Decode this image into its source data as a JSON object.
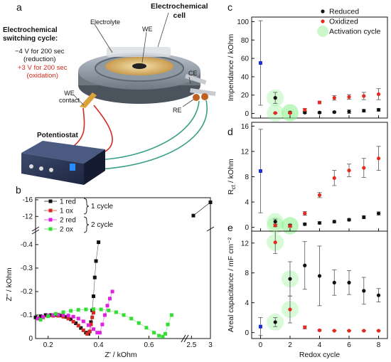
{
  "panel_letters": [
    "a",
    "b",
    "c",
    "d",
    "e"
  ],
  "schematic": {
    "cell_title_1": "Electrochemical",
    "cell_title_2": "cell",
    "cycle_title_1": "Electrochemical",
    "cycle_title_2": "switching cycle:",
    "reduction_1": "−4 V for 200 sec",
    "reduction_2": "(reduction)",
    "oxidation_1": "+3 V for 200 sec",
    "oxidation_2": "(oxidation)",
    "electrolyte": "Electrolyte",
    "we": "WE",
    "ce": "CE",
    "re": "RE",
    "we_contact_1": "WE",
    "we_contact_2": "contact",
    "potentiostat": "Potentiostat",
    "colors": {
      "reduction_text": "#111111",
      "oxidation_text": "#d42a20",
      "red_wire": "#d42a20",
      "green_wire": "#3aa08a",
      "black_wire": "#222222"
    }
  },
  "chart_data": [
    {
      "id": "b",
      "type": "line",
      "xlabel": "Z' / kOhm",
      "ylabel": "Z'' / kOhm",
      "x_ticks_left": [
        "0.2",
        "0.4",
        "0.6"
      ],
      "x_ticks_right": [
        "2.5",
        "3"
      ],
      "y_ticks_lower": [
        "0",
        "-0.1",
        "-0.2",
        "-0.3",
        "-0.4"
      ],
      "y_ticks_upper": [
        "-12",
        "-16"
      ],
      "xlim_left": [
        0.15,
        0.72
      ],
      "xlim_right": [
        2.4,
        3.0
      ],
      "ylim_lower": [
        0,
        -0.43
      ],
      "ylim_upper": [
        -10,
        -16.5
      ],
      "legend": [
        "1 red",
        "1 ox",
        "2 red",
        "2 ox"
      ],
      "legend_groups": [
        "1 cycle",
        "2 cycle"
      ],
      "series": [
        {
          "name": "1 red",
          "color": "#111111",
          "x": [
            0.15,
            0.17,
            0.19,
            0.21,
            0.23,
            0.25,
            0.27,
            0.29,
            0.31,
            0.33,
            0.35,
            0.36,
            0.365,
            0.37,
            0.375,
            0.38,
            0.385,
            0.39,
            0.4
          ],
          "y": [
            -0.09,
            -0.095,
            -0.1,
            -0.1,
            -0.1,
            -0.098,
            -0.092,
            -0.082,
            -0.065,
            -0.045,
            -0.025,
            -0.02,
            -0.03,
            -0.07,
            -0.12,
            -0.18,
            -0.26,
            -0.33,
            -0.41
          ],
          "x_upper": [
            2.55,
            3.0
          ],
          "y_upper": [
            -12.2,
            -15.4
          ]
        },
        {
          "name": "1 ox",
          "color": "#d42a20",
          "x": [
            0.16,
            0.18,
            0.2,
            0.22,
            0.24,
            0.26,
            0.28,
            0.3,
            0.32,
            0.34,
            0.355,
            0.365,
            0.37,
            0.375,
            0.38
          ],
          "y": [
            -0.085,
            -0.09,
            -0.095,
            -0.097,
            -0.097,
            -0.093,
            -0.085,
            -0.072,
            -0.055,
            -0.035,
            -0.02,
            -0.03,
            -0.06,
            -0.09,
            -0.11
          ]
        },
        {
          "name": "2 red",
          "color": "#e020e0",
          "x": [
            0.16,
            0.18,
            0.2,
            0.22,
            0.24,
            0.26,
            0.28,
            0.3,
            0.32,
            0.34,
            0.36,
            0.38,
            0.395,
            0.405,
            0.415,
            0.425,
            0.435,
            0.445,
            0.455
          ],
          "y": [
            -0.085,
            -0.092,
            -0.098,
            -0.1,
            -0.102,
            -0.1,
            -0.098,
            -0.093,
            -0.085,
            -0.073,
            -0.057,
            -0.04,
            -0.025,
            -0.025,
            -0.06,
            -0.1,
            -0.14,
            -0.17,
            -0.2
          ]
        },
        {
          "name": "2 ox",
          "color": "#33dd33",
          "x": [
            0.17,
            0.2,
            0.23,
            0.26,
            0.29,
            0.32,
            0.35,
            0.38,
            0.41,
            0.44,
            0.47,
            0.5,
            0.53,
            0.56,
            0.59,
            0.62,
            0.64,
            0.655,
            0.665,
            0.675,
            0.69
          ],
          "y": [
            -0.08,
            -0.095,
            -0.105,
            -0.112,
            -0.118,
            -0.122,
            -0.124,
            -0.125,
            -0.124,
            -0.12,
            -0.112,
            -0.1,
            -0.085,
            -0.066,
            -0.046,
            -0.025,
            -0.012,
            -0.008,
            -0.02,
            -0.06,
            -0.1
          ]
        }
      ]
    },
    {
      "id": "c",
      "type": "scatter",
      "xlabel": "",
      "ylabel": "Impendance / kOhm",
      "ylim": [
        -5,
        105
      ],
      "y_ticks": [
        "0",
        "20",
        "40",
        "60",
        "80",
        "100"
      ],
      "xlim": [
        -0.6,
        8.6
      ],
      "legend": [
        "Reduced",
        "Oxidized",
        "Activation cycle"
      ],
      "series": [
        {
          "name": "Reduced",
          "color": "#111111",
          "x": [
            1,
            2,
            3,
            4,
            5,
            6,
            7,
            8
          ],
          "y": [
            17,
            1,
            1,
            1,
            1.5,
            2,
            3,
            4
          ],
          "err": [
            6,
            1,
            1,
            1,
            1,
            2,
            1.5,
            1.5
          ]
        },
        {
          "name": "Oxidized",
          "color": "#e52a20",
          "x": [
            1,
            2,
            3,
            4,
            5,
            6,
            7,
            8
          ],
          "y": [
            0.5,
            0.5,
            4,
            12,
            17,
            18,
            19,
            21
          ],
          "err": [
            0.5,
            0.5,
            1.5,
            1.5,
            2.5,
            2.5,
            4,
            6
          ]
        },
        {
          "name": "initial",
          "color": "#1a2fd6",
          "x": [
            0
          ],
          "y": [
            55
          ],
          "err": [
            46
          ]
        }
      ],
      "activation_points": [
        [
          1,
          0.5
        ],
        [
          2,
          0.5
        ],
        [
          2,
          1
        ],
        [
          1,
          17
        ]
      ]
    },
    {
      "id": "d",
      "type": "scatter",
      "xlabel": "",
      "ylabel": "R_ct / kOhm",
      "ylim": [
        -0.6,
        16.6
      ],
      "y_ticks": [
        "0",
        "4",
        "8",
        "12",
        "16"
      ],
      "xlim": [
        -0.6,
        8.6
      ],
      "series": [
        {
          "name": "Reduced",
          "color": "#111111",
          "x": [
            1,
            2,
            3,
            4,
            5,
            6,
            7,
            8
          ],
          "y": [
            0.9,
            0.3,
            0.5,
            0.7,
            0.9,
            1.2,
            1.6,
            2.2
          ],
          "err": [
            0.4,
            0.2,
            0.2,
            0.2,
            0.2,
            0.2,
            0.25,
            0.25
          ]
        },
        {
          "name": "Oxidized",
          "color": "#e52a20",
          "x": [
            1,
            2,
            3,
            4,
            5,
            6,
            7,
            8
          ],
          "y": [
            0.3,
            0.2,
            2.2,
            5.1,
            7.8,
            9,
            9.4,
            10.9
          ],
          "err": [
            0.2,
            0.2,
            0.3,
            0.4,
            1.2,
            1.0,
            1.5,
            1.9
          ]
        },
        {
          "name": "initial",
          "color": "#1a2fd6",
          "x": [
            0
          ],
          "y": [
            8.9
          ],
          "err": [
            6.6
          ]
        }
      ],
      "activation_points": [
        [
          1,
          0.3
        ],
        [
          2,
          0.2
        ],
        [
          1,
          0.9
        ],
        [
          2,
          0.3
        ]
      ]
    },
    {
      "id": "e",
      "type": "scatter",
      "xlabel": "Redox cycle",
      "ylabel": "Areal capacitance / mF cm⁻²",
      "ylim": [
        -0.8,
        13.6
      ],
      "y_ticks": [
        "0",
        "4",
        "8",
        "12"
      ],
      "x_ticks": [
        "0",
        "2",
        "4",
        "6",
        "8"
      ],
      "xlim": [
        -0.6,
        8.6
      ],
      "series": [
        {
          "name": "Reduced",
          "color": "#111111",
          "x": [
            1,
            2,
            3,
            4,
            5,
            6,
            7,
            8
          ],
          "y": [
            1.4,
            7.2,
            9.0,
            7.6,
            6.7,
            6.7,
            5.6,
            5.0
          ],
          "err": [
            0.6,
            2.3,
            3.2,
            4.0,
            1.7,
            1.6,
            1.8,
            0.9
          ]
        },
        {
          "name": "Oxidized",
          "color": "#e52a20",
          "x": [
            1,
            2,
            3,
            4,
            5,
            6,
            7,
            8
          ],
          "y": [
            12.1,
            3.1,
            0.7,
            0.3,
            0.25,
            0.25,
            0.25,
            0.25
          ],
          "err": [
            1.5,
            1.8,
            0.2,
            0.1,
            0.05,
            0.05,
            0.05,
            0.05
          ]
        },
        {
          "name": "initial",
          "color": "#1a2fd6",
          "x": [
            0
          ],
          "y": [
            0.8
          ],
          "err": [
            1.2
          ]
        }
      ],
      "activation_points": [
        [
          1,
          12.1
        ],
        [
          2,
          7.2
        ],
        [
          2,
          3.1
        ],
        [
          1,
          1.4
        ]
      ]
    }
  ]
}
